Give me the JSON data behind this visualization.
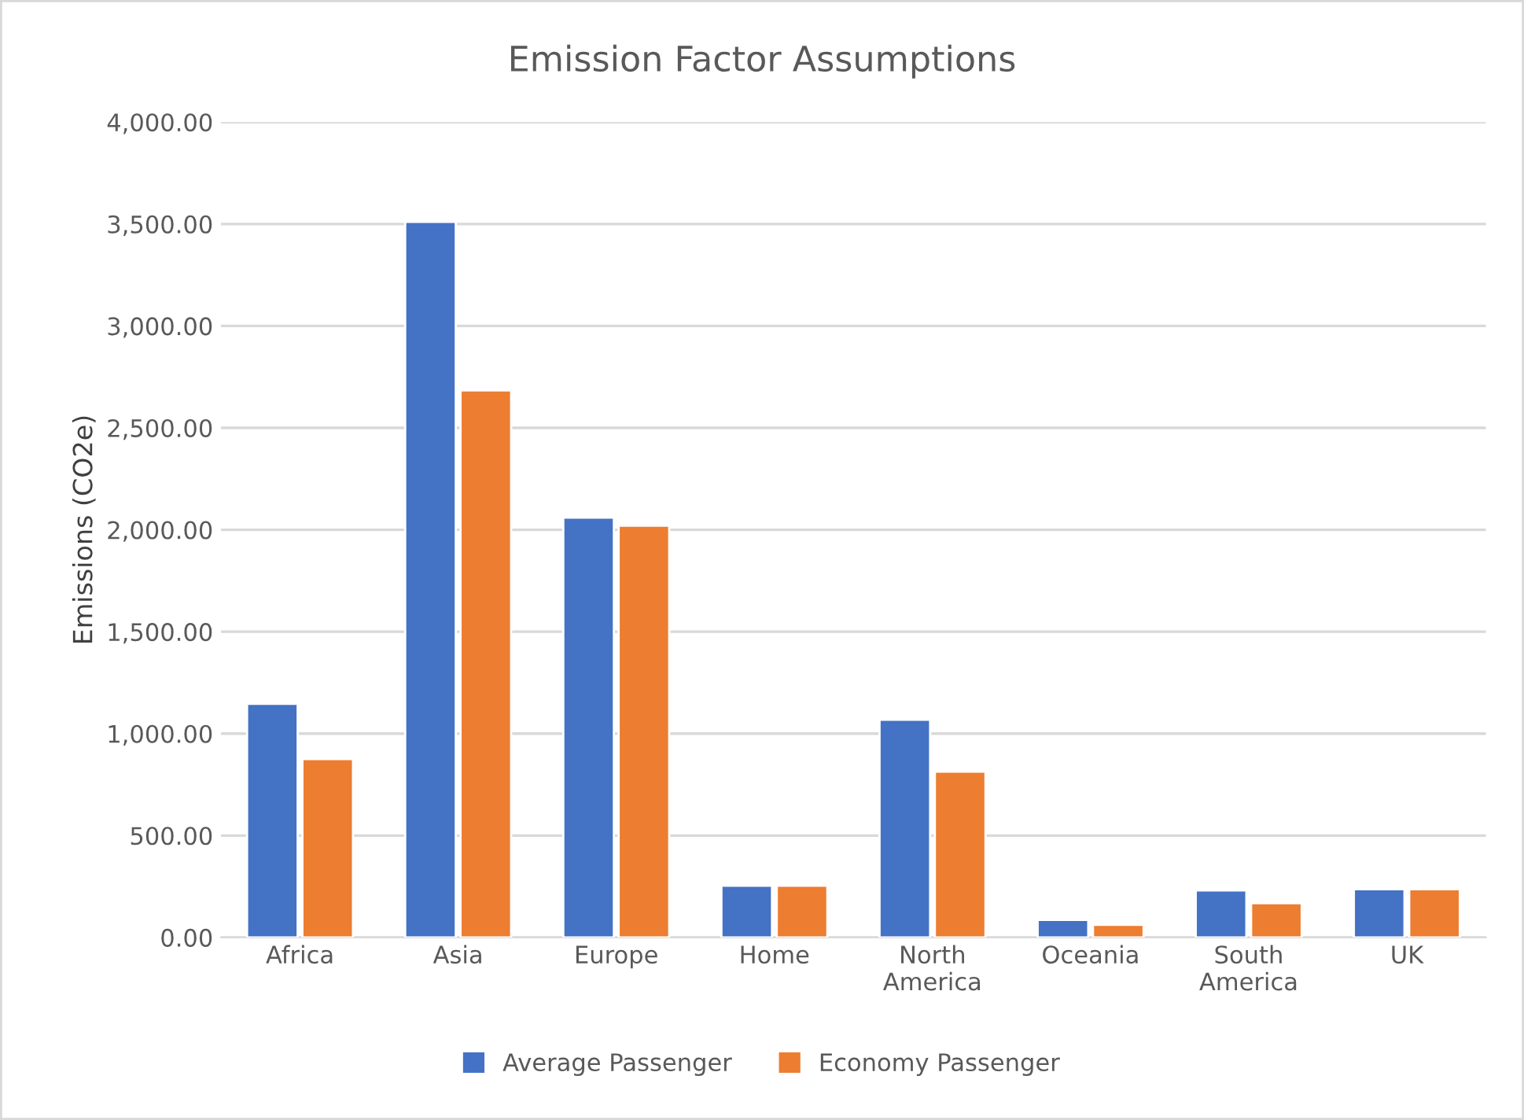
{
  "chart_data": {
    "type": "bar",
    "title": "Emission Factor Assumptions",
    "ylabel": "Emissions (CO2e)",
    "categories": [
      "Africa",
      "Asia",
      "Europe",
      "Home",
      "North\nAmerica",
      "Oceania",
      "South\nAmerica",
      "UK"
    ],
    "series": [
      {
        "name": "Average Passenger",
        "color": "#4472c4",
        "values": [
          1146,
          3510,
          2060,
          254,
          1068,
          86,
          231,
          236
        ]
      },
      {
        "name": "Economy Passenger",
        "color": "#ed7d31",
        "values": [
          875,
          2684,
          2020,
          254,
          813,
          62,
          168,
          236
        ]
      }
    ],
    "ylim": [
      0,
      4000
    ],
    "yticks": [
      {
        "value": 0,
        "label": "0.00"
      },
      {
        "value": 500,
        "label": "500.00"
      },
      {
        "value": 1000,
        "label": "1,000.00"
      },
      {
        "value": 1500,
        "label": "1,500.00"
      },
      {
        "value": 2000,
        "label": "2,000.00"
      },
      {
        "value": 2500,
        "label": "2,500.00"
      },
      {
        "value": 3000,
        "label": "3,000.00"
      },
      {
        "value": 3500,
        "label": "3,500.00"
      },
      {
        "value": 4000,
        "label": "4,000.00"
      }
    ],
    "grid": "y",
    "legend": "bottom"
  }
}
